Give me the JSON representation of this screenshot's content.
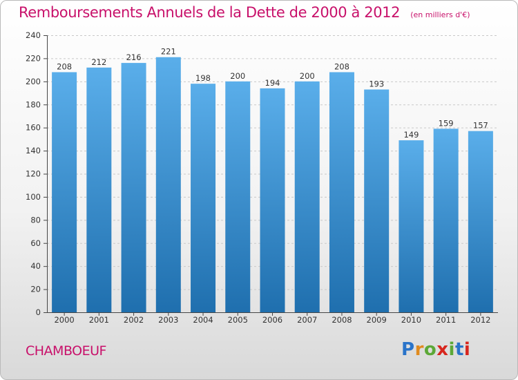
{
  "header": {
    "title": "Remboursements Annuels de la Dette de 2000 à 2012",
    "unit": "(en milliers d'€)"
  },
  "footer": {
    "commune": "CHAMBOEUF",
    "logo_text": "Proxiti"
  },
  "colors": {
    "title": "#c8106a",
    "bar_top": "#5aaeea",
    "bar_bottom": "#1f6fae",
    "logo_letters": [
      "#2a74c9",
      "#e08a1e",
      "#5ca837",
      "#d7261e",
      "#5ca837",
      "#2a74c9",
      "#d7261e"
    ]
  },
  "chart_data": {
    "type": "bar",
    "title": "Remboursements Annuels de la Dette de 2000 à 2012",
    "xlabel": "",
    "ylabel": "",
    "categories": [
      "2000",
      "2001",
      "2002",
      "2003",
      "2004",
      "2005",
      "2006",
      "2007",
      "2008",
      "2009",
      "2010",
      "2011",
      "2012"
    ],
    "values": [
      208,
      212,
      216,
      221,
      198,
      200,
      194,
      200,
      208,
      193,
      149,
      159,
      157
    ],
    "ylim": [
      0,
      240
    ],
    "yticks": [
      0,
      20,
      40,
      60,
      80,
      100,
      120,
      140,
      160,
      180,
      200,
      220,
      240
    ],
    "grid": true,
    "data_labels": true
  }
}
